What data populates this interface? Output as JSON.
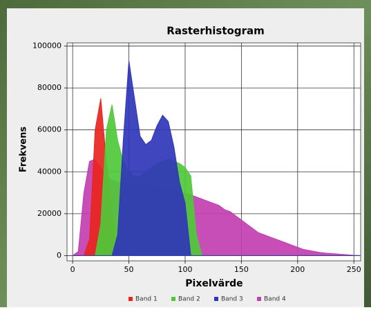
{
  "chart_data": {
    "type": "area",
    "title": "Rasterhistogram",
    "x_label": "Pixelvärde",
    "y_label": "Frekvens",
    "x": [
      0,
      5,
      10,
      15,
      20,
      25,
      30,
      35,
      40,
      45,
      50,
      55,
      60,
      65,
      70,
      75,
      80,
      85,
      90,
      95,
      100,
      105,
      110,
      115,
      120,
      125,
      130,
      135,
      140,
      145,
      150,
      155,
      160,
      165,
      170,
      175,
      180,
      185,
      190,
      195,
      200,
      205,
      210,
      215,
      220,
      225,
      230,
      235,
      240,
      245,
      250,
      255
    ],
    "series": [
      {
        "name": "Band 1",
        "color": "#e8251f",
        "values": [
          0,
          0,
          0,
          8000,
          60000,
          75000,
          45000,
          20000,
          3000,
          0,
          0,
          0,
          0,
          0,
          0,
          0,
          0,
          0,
          0,
          0,
          0,
          0,
          0,
          0,
          0,
          0,
          0,
          0,
          0,
          0,
          0,
          0,
          0,
          0,
          0,
          0,
          0,
          0,
          0,
          0,
          0,
          0,
          0,
          0,
          0,
          0,
          0,
          0,
          0,
          0,
          0,
          0
        ]
      },
      {
        "name": "Band 2",
        "color": "#4fc93a",
        "values": [
          0,
          0,
          0,
          0,
          0,
          15000,
          60000,
          72000,
          55000,
          45000,
          40000,
          38000,
          38000,
          40000,
          42000,
          44000,
          45000,
          46000,
          45000,
          44000,
          42000,
          38000,
          10000,
          0,
          0,
          0,
          0,
          0,
          0,
          0,
          0,
          0,
          0,
          0,
          0,
          0,
          0,
          0,
          0,
          0,
          0,
          0,
          0,
          0,
          0,
          0,
          0,
          0,
          0,
          0,
          0,
          0
        ]
      },
      {
        "name": "Band 3",
        "color": "#3036b8",
        "values": [
          0,
          0,
          0,
          0,
          0,
          0,
          0,
          0,
          10000,
          55000,
          93000,
          75000,
          57000,
          53000,
          55000,
          62000,
          67000,
          64000,
          52000,
          35000,
          25000,
          0,
          0,
          0,
          0,
          0,
          0,
          0,
          0,
          0,
          0,
          0,
          0,
          0,
          0,
          0,
          0,
          0,
          0,
          0,
          0,
          0,
          0,
          0,
          0,
          0,
          0,
          0,
          0,
          0,
          0,
          0
        ]
      },
      {
        "name": "Band 4",
        "color": "#c23fb0",
        "values": [
          0,
          2000,
          30000,
          45000,
          46000,
          42000,
          38000,
          36000,
          35000,
          35000,
          34000,
          34000,
          33000,
          33000,
          33000,
          33000,
          32000,
          32000,
          31000,
          30000,
          30000,
          29000,
          28000,
          27000,
          26000,
          25000,
          24000,
          22000,
          21000,
          19000,
          17000,
          15000,
          13000,
          11000,
          10000,
          9000,
          8000,
          7000,
          6000,
          5000,
          4000,
          3000,
          2500,
          2000,
          1500,
          1200,
          1000,
          800,
          600,
          400,
          200,
          100
        ]
      }
    ],
    "xlim": [
      -5,
      256
    ],
    "ylim": [
      -2500,
      101500
    ],
    "xticks": [
      0,
      50,
      100,
      150,
      200,
      250
    ],
    "yticks": [
      0,
      20000,
      40000,
      60000,
      80000,
      100000
    ],
    "grid": true,
    "legend": "bottom"
  }
}
